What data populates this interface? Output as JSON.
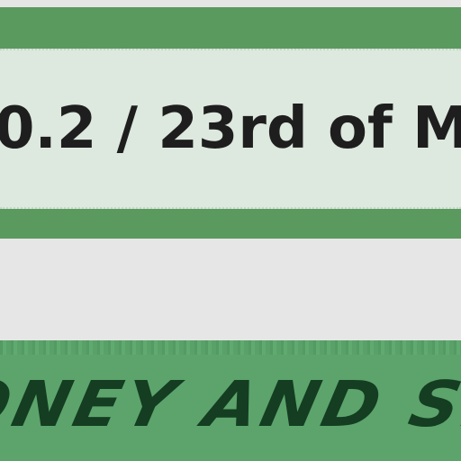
{
  "header": {
    "version_line": "0.2 / 23rd of M"
  },
  "banner": {
    "title": "ONEY AND SH"
  },
  "colors": {
    "band_green": "#5a9a5e",
    "panel_bg": "#dde8df",
    "banner_green": "#5ca46b",
    "banner_text": "#143d22",
    "page_bg": "#e6e6e6"
  }
}
